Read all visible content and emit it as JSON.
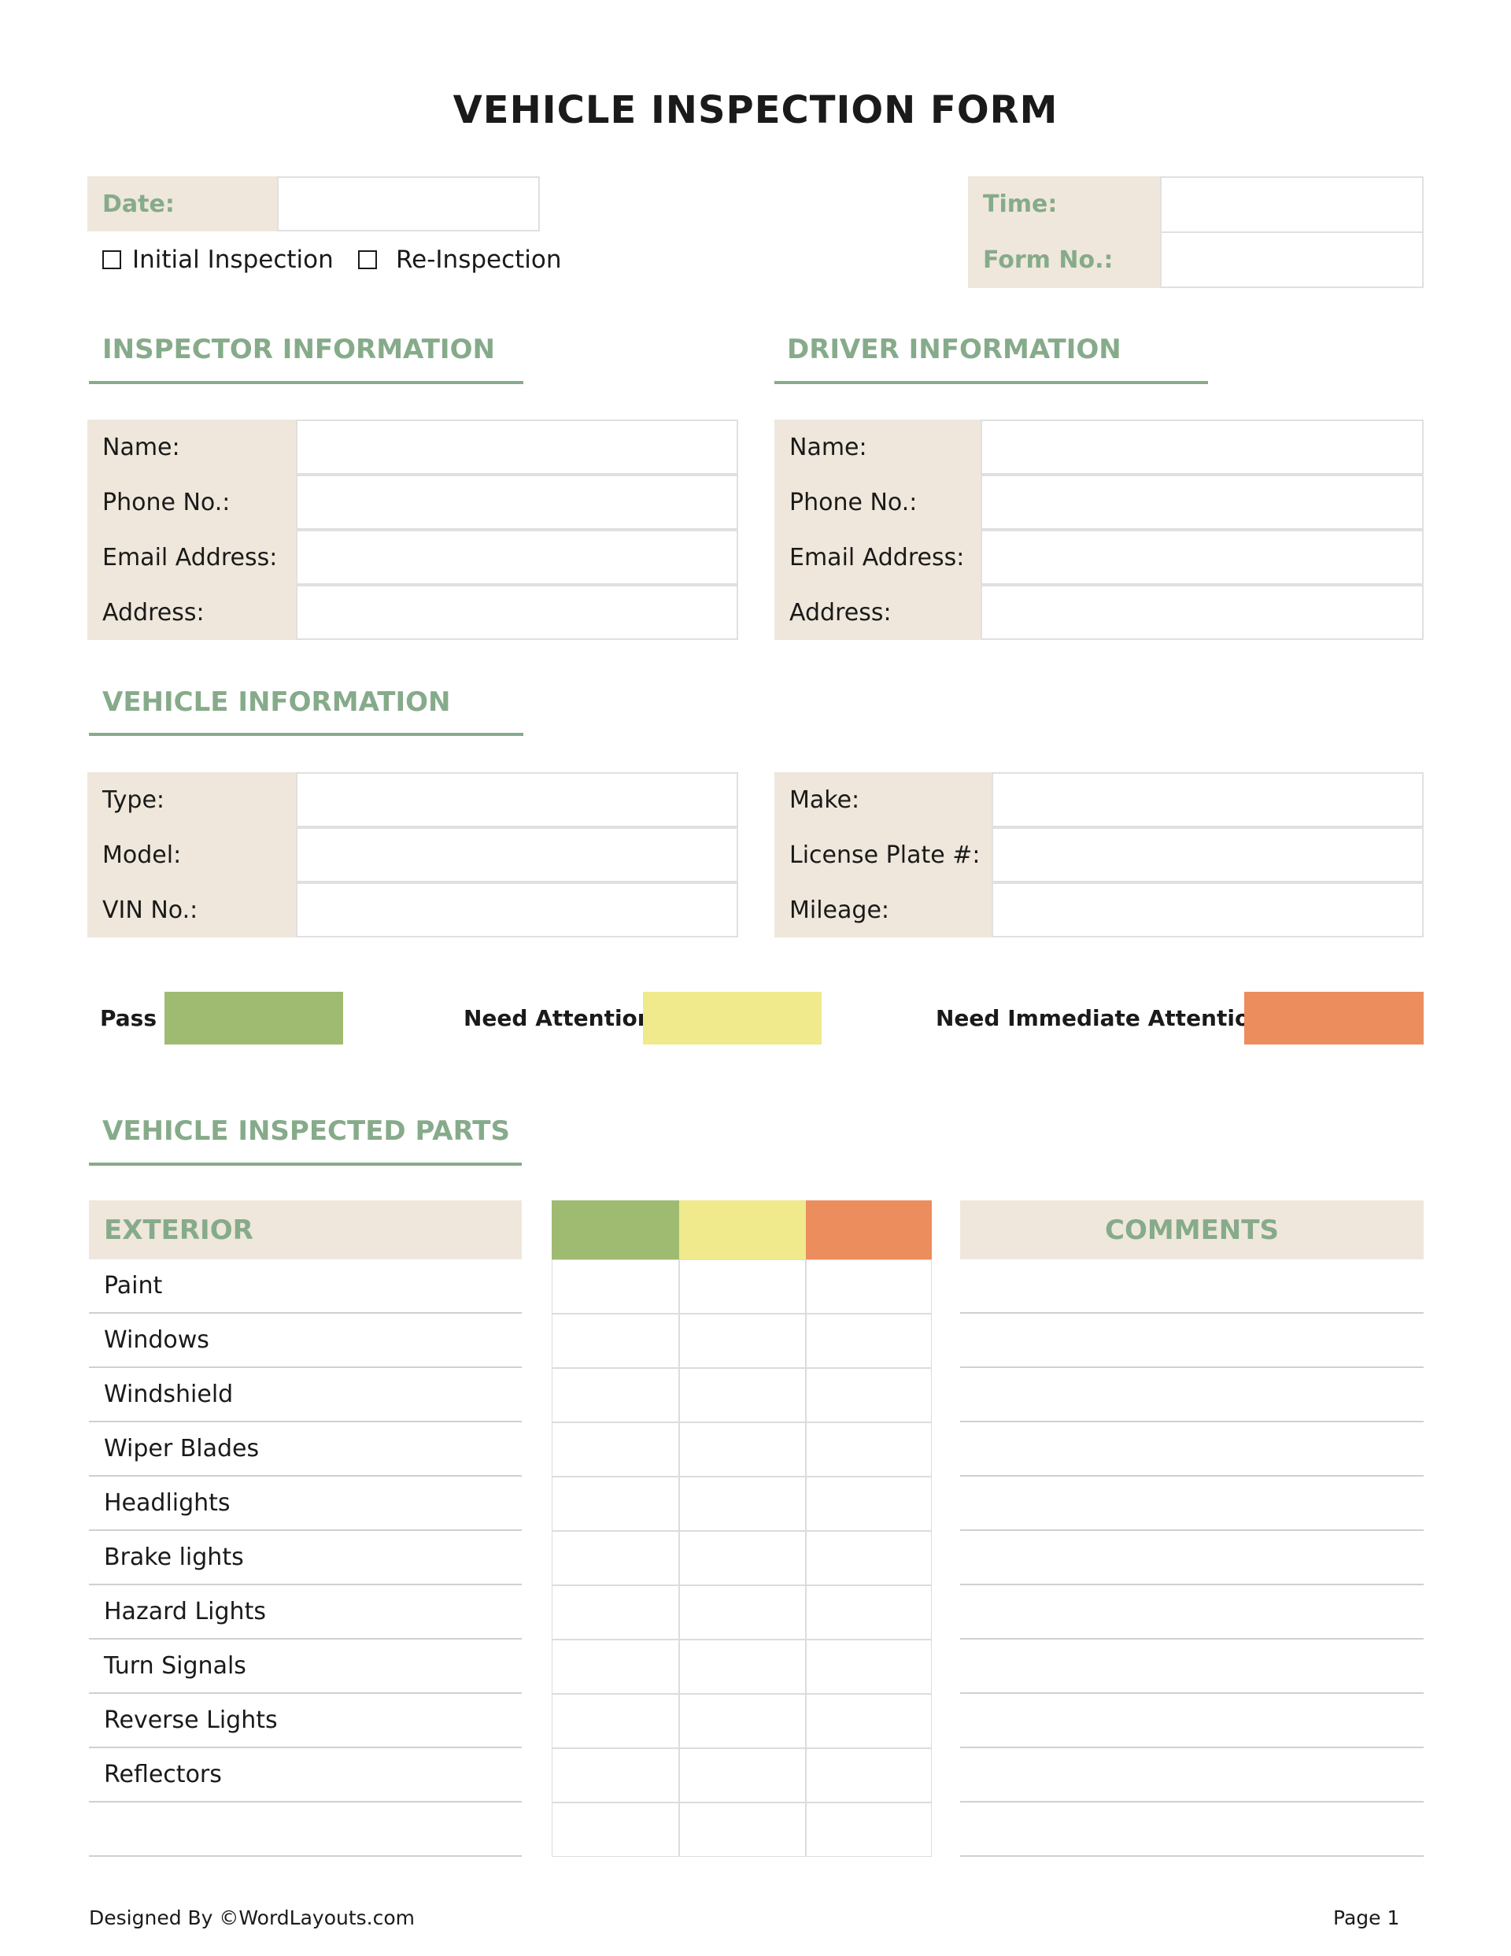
{
  "title": "VEHICLE INSPECTION FORM",
  "header": {
    "date_label": "Date:",
    "time_label": "Time:",
    "form_no_label": "Form No.:",
    "date_value": "",
    "time_value": "",
    "form_no_value": ""
  },
  "inspection_type": [
    {
      "label": "Initial Inspection",
      "checked": false
    },
    {
      "label": "Re-Inspection",
      "checked": false
    }
  ],
  "inspector": {
    "heading": "INSPECTOR INFORMATION",
    "fields": [
      {
        "label": "Name:",
        "value": ""
      },
      {
        "label": "Phone No.:",
        "value": ""
      },
      {
        "label": "Email Address:",
        "value": ""
      },
      {
        "label": "Address:",
        "value": ""
      }
    ]
  },
  "driver": {
    "heading": "DRIVER INFORMATION",
    "fields": [
      {
        "label": "Name:",
        "value": ""
      },
      {
        "label": "Phone No.:",
        "value": ""
      },
      {
        "label": "Email Address:",
        "value": ""
      },
      {
        "label": "Address:",
        "value": ""
      }
    ]
  },
  "vehicle": {
    "heading": "VEHICLE INFORMATION",
    "left": [
      {
        "label": "Type:",
        "value": ""
      },
      {
        "label": "Model:",
        "value": ""
      },
      {
        "label": "VIN No.:",
        "value": ""
      }
    ],
    "right": [
      {
        "label": "Make:",
        "value": ""
      },
      {
        "label": "License Plate #:",
        "value": ""
      },
      {
        "label": "Mileage:",
        "value": ""
      }
    ]
  },
  "legend": [
    {
      "label": "Pass",
      "color": "#9fbb72"
    },
    {
      "label": "Need Attention",
      "color": "#f0ea8c"
    },
    {
      "label": "Need Immediate Attention",
      "color": "#ec8d5e"
    }
  ],
  "parts": {
    "heading": "VEHICLE INSPECTED PARTS",
    "category": "EXTERIOR",
    "comments_heading": "COMMENTS",
    "items": [
      "Paint",
      "Windows",
      "Windshield",
      "Wiper Blades",
      "Headlights",
      "Brake lights",
      "Hazard Lights",
      "Turn Signals",
      "Reverse Lights",
      "Reflectors",
      ""
    ]
  },
  "footer": {
    "credit": "Designed By ©WordLayouts.com",
    "page": "Page 1"
  },
  "colors": {
    "accent": "#86ab8a",
    "label_bg": "#efe7db"
  }
}
